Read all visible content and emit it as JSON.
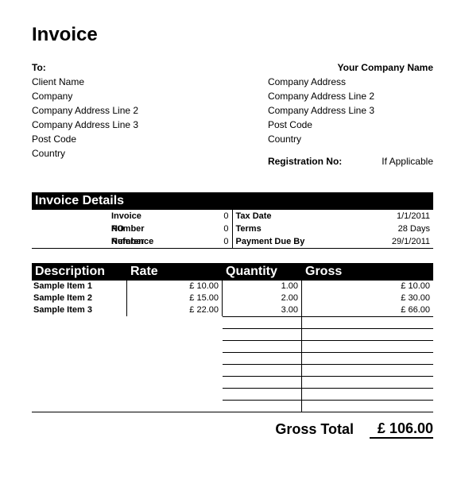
{
  "title": "Invoice",
  "to": {
    "label": "To:",
    "lines": [
      "Client Name",
      "Company",
      "Company Address Line 2",
      "Company Address Line 3",
      "Post Code",
      "Country"
    ]
  },
  "from": {
    "label": "Your Company Name",
    "lines": [
      "Company Address",
      "Company Address Line 2",
      "Company Address Line 3",
      "Post Code",
      "Country"
    ]
  },
  "registration": {
    "label": "Registration No:",
    "value": "If Applicable"
  },
  "details": {
    "heading": "Invoice Details",
    "left": [
      {
        "label": "Invoice Number",
        "value": "0"
      },
      {
        "label": "PO Number",
        "value": "0"
      },
      {
        "label": "Reference",
        "value": "0"
      }
    ],
    "right": [
      {
        "label": "Tax Date",
        "value": "1/1/2011"
      },
      {
        "label": "Terms",
        "value": "28 Days"
      },
      {
        "label": "Payment Due By",
        "value": "29/1/2011"
      }
    ]
  },
  "items": {
    "headers": {
      "desc": "Description",
      "rate": "Rate",
      "qty": "Quantity",
      "gross": "Gross"
    },
    "rows": [
      {
        "desc": "Sample Item 1",
        "rate": "£ 10.00",
        "qty": "1.00",
        "gross": "£ 10.00"
      },
      {
        "desc": "Sample Item 2",
        "rate": "£ 15.00",
        "qty": "2.00",
        "gross": "£ 30.00"
      },
      {
        "desc": "Sample Item 3",
        "rate": "£ 22.00",
        "qty": "3.00",
        "gross": "£ 66.00"
      }
    ],
    "empty_rows": 8
  },
  "total": {
    "label": "Gross Total",
    "value": "£ 106.00"
  }
}
